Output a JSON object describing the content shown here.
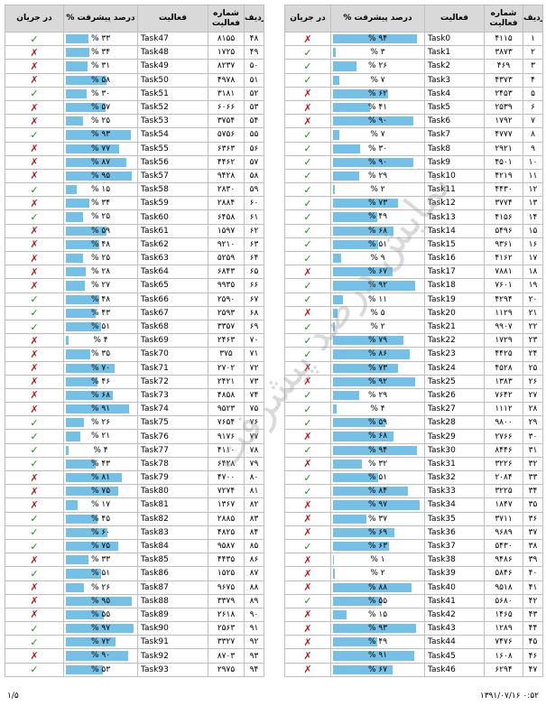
{
  "headers": {
    "rank": "ردیف",
    "code": "شماره فعالیت",
    "activity": "فعالیت",
    "progress": "درصد پیشرفت",
    "status": "در جریان"
  },
  "watermark": "نمایش درصد پیشرفت",
  "footer": {
    "page": "۱/۵",
    "timestamp": "۱۳۹۱/۰۷/۱۶ ۰:۵۲"
  },
  "status_colors": {
    "ok": "#1a8f1a",
    "no": "#c0181f"
  },
  "progress_color": "#74c0e6",
  "left_table": [
    {
      "rank": "۴۸",
      "code": "۸۱۵۵",
      "activity": "Task47",
      "progress": 33,
      "status": "ok"
    },
    {
      "rank": "۴۹",
      "code": "۱۷۲۵",
      "activity": "Task48",
      "progress": 34,
      "status": "no"
    },
    {
      "rank": "۵۰",
      "code": "۸۲۳۷",
      "activity": "Task49",
      "progress": 31,
      "status": "no"
    },
    {
      "rank": "۵۱",
      "code": "۴۹۷۸",
      "activity": "Task50",
      "progress": 58,
      "status": "no"
    },
    {
      "rank": "۵۲",
      "code": "۳۱۸۱",
      "activity": "Task51",
      "progress": 30,
      "status": "ok"
    },
    {
      "rank": "۵۳",
      "code": "۶۰۶۶",
      "activity": "Task52",
      "progress": 57,
      "status": "no"
    },
    {
      "rank": "۵۴",
      "code": "۳۷۵۴",
      "activity": "Task53",
      "progress": 25,
      "status": "no"
    },
    {
      "rank": "۵۵",
      "code": "۵۷۵۶",
      "activity": "Task54",
      "progress": 93,
      "status": "ok"
    },
    {
      "rank": "۵۶",
      "code": "۶۳۶۳",
      "activity": "Task55",
      "progress": 77,
      "status": "no"
    },
    {
      "rank": "۵۷",
      "code": "۴۴۶۲",
      "activity": "Task56",
      "progress": 87,
      "status": "no"
    },
    {
      "rank": "۵۸",
      "code": "۹۴۲۸",
      "activity": "Task57",
      "progress": 95,
      "status": "no"
    },
    {
      "rank": "۵۹",
      "code": "۲۸۳۰",
      "activity": "Task58",
      "progress": 15,
      "status": "ok"
    },
    {
      "rank": "۶۰",
      "code": "۲۸۸۴",
      "activity": "Task59",
      "progress": 34,
      "status": "no"
    },
    {
      "rank": "۶۱",
      "code": "۶۴۵۸",
      "activity": "Task60",
      "progress": 25,
      "status": "ok"
    },
    {
      "rank": "۶۲",
      "code": "۱۵۹۷",
      "activity": "Task61",
      "progress": 59,
      "status": "no"
    },
    {
      "rank": "۶۳",
      "code": "۹۲۱۰",
      "activity": "Task62",
      "progress": 48,
      "status": "no"
    },
    {
      "rank": "۶۴",
      "code": "۵۲۵۹",
      "activity": "Task63",
      "progress": 25,
      "status": "no"
    },
    {
      "rank": "۶۵",
      "code": "۶۸۴۳",
      "activity": "Task64",
      "progress": 28,
      "status": "no"
    },
    {
      "rank": "۶۶",
      "code": "۹۹۳۵",
      "activity": "Task65",
      "progress": 27,
      "status": "no"
    },
    {
      "rank": "۶۷",
      "code": "۲۵۹۰",
      "activity": "Task66",
      "progress": 48,
      "status": "ok"
    },
    {
      "rank": "۶۸",
      "code": "۲۵۹۳",
      "activity": "Task67",
      "progress": 43,
      "status": "ok"
    },
    {
      "rank": "۶۹",
      "code": "۳۳۵۷",
      "activity": "Task68",
      "progress": 51,
      "status": "ok"
    },
    {
      "rank": "۷۰",
      "code": "۲۴۶۳",
      "activity": "Task69",
      "progress": 4,
      "status": "no"
    },
    {
      "rank": "۷۱",
      "code": "۳۷۵",
      "activity": "Task70",
      "progress": 35,
      "status": "no"
    },
    {
      "rank": "۷۲",
      "code": "۲۷۰۲",
      "activity": "Task71",
      "progress": 70,
      "status": "no"
    },
    {
      "rank": "۷۳",
      "code": "۲۴۲۱",
      "activity": "Task72",
      "progress": 46,
      "status": "no"
    },
    {
      "rank": "۷۴",
      "code": "۴۸۵۸",
      "activity": "Task73",
      "progress": 68,
      "status": "no"
    },
    {
      "rank": "۷۵",
      "code": "۹۵۲۳",
      "activity": "Task74",
      "progress": 91,
      "status": "no"
    },
    {
      "rank": "۷۶",
      "code": "۷۶۵۴",
      "activity": "Task75",
      "progress": 26,
      "status": "ok"
    },
    {
      "rank": "۷۷",
      "code": "۹۱۷۶",
      "activity": "Task76",
      "progress": 21,
      "status": "ok"
    },
    {
      "rank": "۷۸",
      "code": "۴۱۱۰",
      "activity": "Task77",
      "progress": 4,
      "status": "ok"
    },
    {
      "rank": "۷۹",
      "code": "۶۴۲۸",
      "activity": "Task78",
      "progress": 43,
      "status": "ok"
    },
    {
      "rank": "۸۰",
      "code": "۴۷۰۰",
      "activity": "Task79",
      "progress": 81,
      "status": "no"
    },
    {
      "rank": "۸۱",
      "code": "۷۲۷۴",
      "activity": "Task80",
      "progress": 75,
      "status": "no"
    },
    {
      "rank": "۸۲",
      "code": "۱۳۶۷",
      "activity": "Task81",
      "progress": 17,
      "status": "no"
    },
    {
      "rank": "۸۳",
      "code": "۲۸۸۵",
      "activity": "Task82",
      "progress": 45,
      "status": "ok"
    },
    {
      "rank": "۸۴",
      "code": "۴۸۲۵",
      "activity": "Task83",
      "progress": 60,
      "status": "ok"
    },
    {
      "rank": "۸۵",
      "code": "۹۵۸۷",
      "activity": "Task84",
      "progress": 75,
      "status": "ok"
    },
    {
      "rank": "۸۶",
      "code": "۴۴۳۵",
      "activity": "Task85",
      "progress": 33,
      "status": "no"
    },
    {
      "rank": "۸۷",
      "code": "۱۵۲۵",
      "activity": "Task86",
      "progress": 51,
      "status": "ok"
    },
    {
      "rank": "۸۸",
      "code": "۹۶۷۵",
      "activity": "Task87",
      "progress": 26,
      "status": "no"
    },
    {
      "rank": "۸۹",
      "code": "۳۳۷۹",
      "activity": "Task88",
      "progress": 95,
      "status": "no"
    },
    {
      "rank": "۹۰",
      "code": "۲۶۱۸",
      "activity": "Task89",
      "progress": 55,
      "status": "no"
    },
    {
      "rank": "۹۱",
      "code": "۲۵۶۳",
      "activity": "Task90",
      "progress": 97,
      "status": "ok"
    },
    {
      "rank": "۹۲",
      "code": "۳۳۲۷",
      "activity": "Task91",
      "progress": 72,
      "status": "ok"
    },
    {
      "rank": "۹۳",
      "code": "۸۷۰۳",
      "activity": "Task92",
      "progress": 90,
      "status": "no"
    },
    {
      "rank": "۹۴",
      "code": "۲۹۷۵",
      "activity": "Task93",
      "progress": 53,
      "status": "ok"
    }
  ],
  "right_table": [
    {
      "rank": "۱",
      "code": "۴۱۱۵",
      "activity": "Task0",
      "progress": 94,
      "status": "no"
    },
    {
      "rank": "۲",
      "code": "۳۸۷۳",
      "activity": "Task1",
      "progress": 3,
      "status": "ok"
    },
    {
      "rank": "۳",
      "code": "۴۶۹",
      "activity": "Task2",
      "progress": 26,
      "status": "ok"
    },
    {
      "rank": "۴",
      "code": "۴۳۷۳",
      "activity": "Task3",
      "progress": 7,
      "status": "ok"
    },
    {
      "rank": "۵",
      "code": "۲۴۵۳",
      "activity": "Task4",
      "progress": 62,
      "status": "no"
    },
    {
      "rank": "۶",
      "code": "۲۵۳۹",
      "activity": "Task5",
      "progress": 41,
      "status": "no"
    },
    {
      "rank": "۷",
      "code": "۱۷۹۲",
      "activity": "Task6",
      "progress": 90,
      "status": "no"
    },
    {
      "rank": "۸",
      "code": "۴۷۷۷",
      "activity": "Task7",
      "progress": 7,
      "status": "ok"
    },
    {
      "rank": "۹",
      "code": "۲۹۲۱",
      "activity": "Task8",
      "progress": 30,
      "status": "ok"
    },
    {
      "rank": "۱۰",
      "code": "۴۵۰۱",
      "activity": "Task9",
      "progress": 90,
      "status": "ok"
    },
    {
      "rank": "۱۱",
      "code": "۴۲۱۹",
      "activity": "Task10",
      "progress": 29,
      "status": "ok"
    },
    {
      "rank": "۱۲",
      "code": "۴۴۳۰",
      "activity": "Task11",
      "progress": 2,
      "status": "ok"
    },
    {
      "rank": "۱۳",
      "code": "۳۷۷۴",
      "activity": "Task12",
      "progress": 73,
      "status": "ok"
    },
    {
      "rank": "۱۴",
      "code": "۴۱۵۶",
      "activity": "Task13",
      "progress": 49,
      "status": "ok"
    },
    {
      "rank": "۱۵",
      "code": "۵۴۹۶",
      "activity": "Task14",
      "progress": 68,
      "status": "ok"
    },
    {
      "rank": "۱۶",
      "code": "۹۳۶۱",
      "activity": "Task15",
      "progress": 51,
      "status": "ok"
    },
    {
      "rank": "۱۷",
      "code": "۴۱۶۲",
      "activity": "Task16",
      "progress": 9,
      "status": "ok"
    },
    {
      "rank": "۱۸",
      "code": "۷۸۸۱",
      "activity": "Task17",
      "progress": 67,
      "status": "no"
    },
    {
      "rank": "۱۹",
      "code": "۷۶۰۱",
      "activity": "Task18",
      "progress": 92,
      "status": "ok"
    },
    {
      "rank": "۲۰",
      "code": "۴۲۹۴",
      "activity": "Task19",
      "progress": 11,
      "status": "ok"
    },
    {
      "rank": "۲۱",
      "code": "۱۱۲۹",
      "activity": "Task20",
      "progress": 5,
      "status": "no"
    },
    {
      "rank": "۲۲",
      "code": "۹۹۰۷",
      "activity": "Task21",
      "progress": 2,
      "status": "ok"
    },
    {
      "rank": "۲۳",
      "code": "۱۷۲۹",
      "activity": "Task22",
      "progress": 79,
      "status": "ok"
    },
    {
      "rank": "۲۴",
      "code": "۴۴۲۵",
      "activity": "Task23",
      "progress": 86,
      "status": "ok"
    },
    {
      "rank": "۲۵",
      "code": "۴۵۲۸",
      "activity": "Task24",
      "progress": 73,
      "status": "no"
    },
    {
      "rank": "۲۶",
      "code": "۱۳۸۳",
      "activity": "Task25",
      "progress": 92,
      "status": "no"
    },
    {
      "rank": "۲۷",
      "code": "۷۶۴۲",
      "activity": "Task26",
      "progress": 29,
      "status": "ok"
    },
    {
      "rank": "۲۸",
      "code": "۱۱۱۲",
      "activity": "Task27",
      "progress": 4,
      "status": "ok"
    },
    {
      "rank": "۲۹",
      "code": "۹۸۰۰",
      "activity": "Task28",
      "progress": 59,
      "status": "ok"
    },
    {
      "rank": "۳۰",
      "code": "۲۷۶۶",
      "activity": "Task29",
      "progress": 68,
      "status": "no"
    },
    {
      "rank": "۳۱",
      "code": "۸۴۴۶",
      "activity": "Task30",
      "progress": 94,
      "status": "ok"
    },
    {
      "rank": "۳۲",
      "code": "۳۲۲۶",
      "activity": "Task31",
      "progress": 32,
      "status": "no"
    },
    {
      "rank": "۳۳",
      "code": "۲۰۸۴",
      "activity": "Task32",
      "progress": 51,
      "status": "ok"
    },
    {
      "rank": "۳۴",
      "code": "۳۲۲۵",
      "activity": "Task33",
      "progress": 84,
      "status": "ok"
    },
    {
      "rank": "۳۵",
      "code": "۱۸۴۷",
      "activity": "Task34",
      "progress": 97,
      "status": "no"
    },
    {
      "rank": "۳۶",
      "code": "۳۷۱۱",
      "activity": "Task35",
      "progress": 37,
      "status": "no"
    },
    {
      "rank": "۳۷",
      "code": "۹۶۸۹",
      "activity": "Task36",
      "progress": 69,
      "status": "no"
    },
    {
      "rank": "۳۸",
      "code": "۵۴۳۰",
      "activity": "Task37",
      "progress": 63,
      "status": "ok"
    },
    {
      "rank": "۳۹",
      "code": "۹۴۸۶",
      "activity": "Task38",
      "progress": 1,
      "status": "no"
    },
    {
      "rank": "۴۰",
      "code": "۵۸۴۶",
      "activity": "Task39",
      "progress": 2,
      "status": "no"
    },
    {
      "rank": "۴۱",
      "code": "۹۵۱۸",
      "activity": "Task40",
      "progress": 88,
      "status": "no"
    },
    {
      "rank": "۴۲",
      "code": "۵۶۸۰",
      "activity": "Task41",
      "progress": 55,
      "status": "ok"
    },
    {
      "rank": "۴۳",
      "code": "۱۴۶۵",
      "activity": "Task42",
      "progress": 15,
      "status": "no"
    },
    {
      "rank": "۴۴",
      "code": "۱۲۸۹",
      "activity": "Task43",
      "progress": 93,
      "status": "no"
    },
    {
      "rank": "۴۵",
      "code": "۷۴۷۶",
      "activity": "Task44",
      "progress": 49,
      "status": "no"
    },
    {
      "rank": "۴۶",
      "code": "۱۶۰۸",
      "activity": "Task45",
      "progress": 91,
      "status": "no"
    },
    {
      "rank": "۴۷",
      "code": "۶۲۹۴",
      "activity": "Task46",
      "progress": 67,
      "status": "no"
    }
  ]
}
